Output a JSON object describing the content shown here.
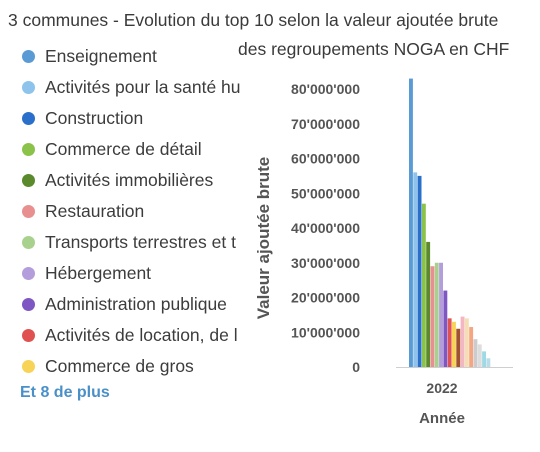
{
  "title": {
    "line1": "3 communes - Evolution du top 10 selon la valeur ajoutée brute",
    "line2": "des regroupements NOGA en CHF"
  },
  "legend": {
    "more_label": "Et 8 de plus"
  },
  "chart_data": {
    "type": "bar",
    "title": "3 communes - Evolution du top 10 selon la valeur ajoutée brute des regroupements NOGA en CHF",
    "xlabel": "Année",
    "ylabel": "Valeur ajoutée brute",
    "categories": [
      "2022"
    ],
    "ylim": [
      0,
      85000000
    ],
    "yticks": [
      0,
      10000000,
      20000000,
      30000000,
      40000000,
      50000000,
      60000000,
      70000000,
      80000000
    ],
    "ytick_labels": [
      "0",
      "10'000'000",
      "20'000'000",
      "30'000'000",
      "40'000'000",
      "50'000'000",
      "60'000'000",
      "70'000'000",
      "80'000'000"
    ],
    "legend_position": "left",
    "series": [
      {
        "name": "Enseignement",
        "color": "#5b9bd5",
        "values": [
          83000000
        ]
      },
      {
        "name": "Activités pour la santé hu",
        "color": "#8ec3ec",
        "values": [
          56000000
        ]
      },
      {
        "name": "Construction",
        "color": "#2a6fc9",
        "values": [
          55000000
        ]
      },
      {
        "name": "Commerce de détail",
        "color": "#8bc34a",
        "values": [
          47000000
        ]
      },
      {
        "name": "Activités immobilières",
        "color": "#5a8a2c",
        "values": [
          36000000
        ]
      },
      {
        "name": "Restauration",
        "color": "#e88f8f",
        "values": [
          29000000
        ]
      },
      {
        "name": "Transports terrestres et t",
        "color": "#a9d18e",
        "values": [
          30000000
        ]
      },
      {
        "name": "Hébergement",
        "color": "#b39ddb",
        "values": [
          30000000
        ]
      },
      {
        "name": "Administration publique",
        "color": "#7e57c2",
        "values": [
          22000000
        ]
      },
      {
        "name": "Activités de location, de l",
        "color": "#e05252",
        "values": [
          14000000
        ]
      },
      {
        "name": "Commerce de gros",
        "color": "#f7d358",
        "values": [
          13000000
        ]
      },
      {
        "color": "#a0522d",
        "values": [
          11000000
        ]
      },
      {
        "color": "#f4b6c2",
        "values": [
          14500000
        ]
      },
      {
        "color": "#f5deb3",
        "values": [
          14000000
        ]
      },
      {
        "color": "#f4a582",
        "values": [
          11500000
        ]
      },
      {
        "color": "#cccccc",
        "values": [
          8000000
        ]
      },
      {
        "color": "#dddddd",
        "values": [
          6500000
        ]
      },
      {
        "color": "#9edae5",
        "values": [
          4500000
        ]
      },
      {
        "color": "#b8dce8",
        "values": [
          2500000
        ]
      }
    ]
  }
}
